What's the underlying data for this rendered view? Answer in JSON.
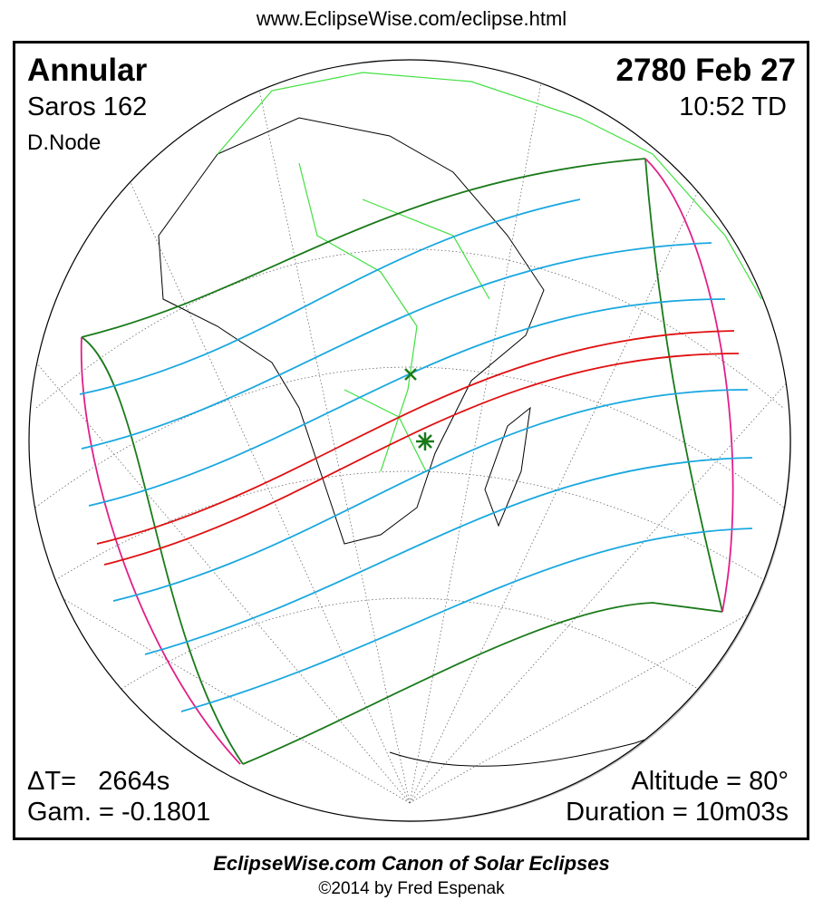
{
  "header": {
    "url": "www.EclipseWise.com/eclipse.html"
  },
  "eclipse": {
    "type": "Annular",
    "saros": "Saros 162",
    "node": "D.Node",
    "date": "2780 Feb 27",
    "time": "10:52 TD",
    "delta_t": "ΔT=   2664s",
    "gamma": "Gam. = -0.1801",
    "altitude": "Altitude = 80°",
    "duration": "Duration = 10m03s"
  },
  "footer": {
    "title": "EclipseWise.com Canon of Solar Eclipses",
    "copyright": "©2014 by Fred Espenak"
  },
  "colors": {
    "penumbral_limits": "#1a7a1a",
    "rise_set": "#e0208a",
    "magnitude_lines": "#1aa8e0",
    "central_path": "#e01010",
    "borders": "#40e040"
  },
  "markers": {
    "greatest_eclipse": "star-icon",
    "greatest_duration": "x-icon"
  }
}
